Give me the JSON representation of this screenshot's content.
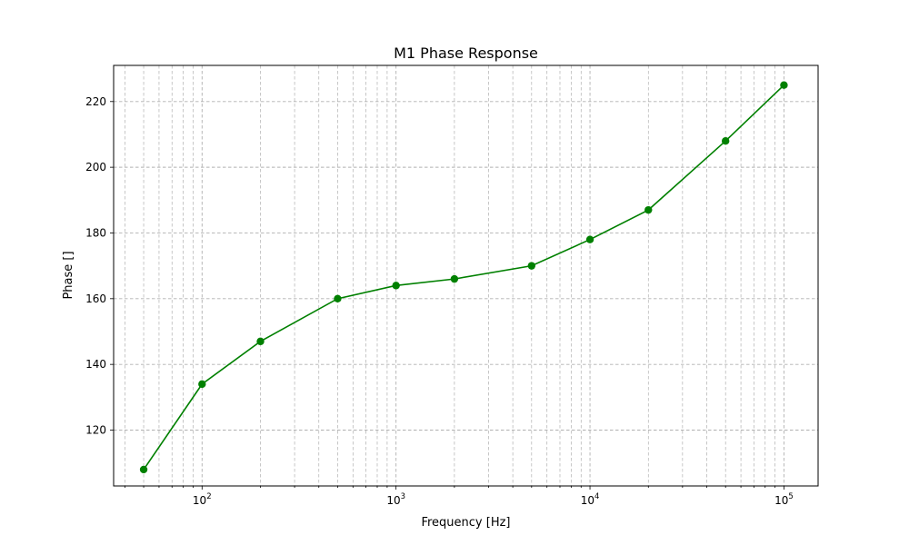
{
  "chart_data": {
    "type": "line",
    "title": "M1 Phase Response",
    "xlabel": "Frequency [Hz]",
    "ylabel": "Phase []",
    "x_scale": "log",
    "xlim": [
      35,
      150000
    ],
    "ylim": [
      103,
      231
    ],
    "x_ticks": [
      {
        "value": 100,
        "base": "10",
        "exp": "2"
      },
      {
        "value": 1000,
        "base": "10",
        "exp": "3"
      },
      {
        "value": 10000,
        "base": "10",
        "exp": "4"
      },
      {
        "value": 100000,
        "base": "10",
        "exp": "5"
      }
    ],
    "y_ticks": [
      120,
      140,
      160,
      180,
      200,
      220
    ],
    "grid": true,
    "series": [
      {
        "color": "#008000",
        "marker": "circle",
        "x": [
          50,
          100,
          200,
          500,
          1000,
          2000,
          5000,
          10000,
          20000,
          50000,
          100000
        ],
        "y": [
          108,
          134,
          147,
          160,
          164,
          166,
          170,
          178,
          187,
          208,
          225
        ]
      }
    ]
  }
}
